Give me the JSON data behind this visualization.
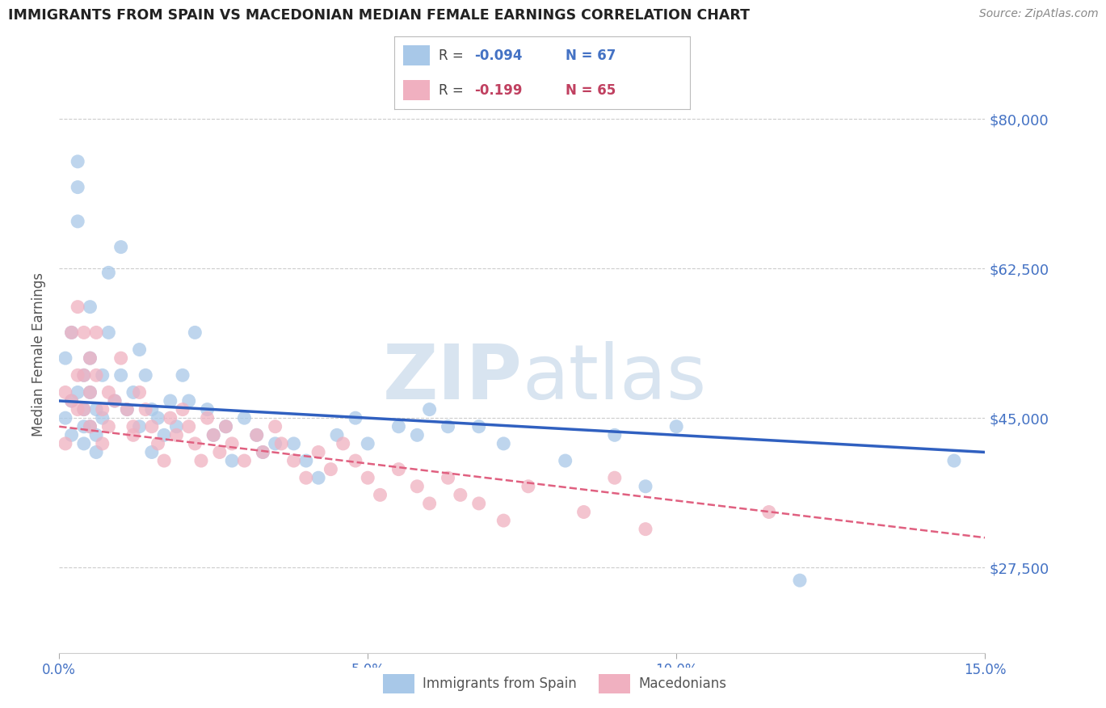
{
  "title": "IMMIGRANTS FROM SPAIN VS MACEDONIAN MEDIAN FEMALE EARNINGS CORRELATION CHART",
  "source": "Source: ZipAtlas.com",
  "ylabel": "Median Female Earnings",
  "xlim": [
    0.0,
    0.15
  ],
  "ylim": [
    17500,
    87500
  ],
  "yticks": [
    27500,
    45000,
    62500,
    80000
  ],
  "ytick_labels": [
    "$27,500",
    "$45,000",
    "$62,500",
    "$80,000"
  ],
  "xticks": [
    0.0,
    0.05,
    0.1,
    0.15
  ],
  "xtick_labels": [
    "0.0%",
    "5.0%",
    "10.0%",
    "15.0%"
  ],
  "series": [
    {
      "name": "Immigrants from Spain",
      "color": "#a8c8e8",
      "R": -0.094,
      "N": 67,
      "trendline_style": "solid",
      "trendline_color": "#3060c0",
      "trendline_x0": 0.0,
      "trendline_y0": 47000,
      "trendline_x1": 0.15,
      "trendline_y1": 41000,
      "x": [
        0.001,
        0.001,
        0.002,
        0.002,
        0.002,
        0.003,
        0.003,
        0.003,
        0.003,
        0.004,
        0.004,
        0.004,
        0.004,
        0.005,
        0.005,
        0.005,
        0.005,
        0.006,
        0.006,
        0.006,
        0.007,
        0.007,
        0.008,
        0.008,
        0.009,
        0.01,
        0.01,
        0.011,
        0.012,
        0.013,
        0.013,
        0.014,
        0.015,
        0.015,
        0.016,
        0.017,
        0.018,
        0.019,
        0.02,
        0.021,
        0.022,
        0.024,
        0.025,
        0.027,
        0.028,
        0.03,
        0.032,
        0.033,
        0.035,
        0.038,
        0.04,
        0.042,
        0.045,
        0.048,
        0.05,
        0.055,
        0.058,
        0.06,
        0.063,
        0.068,
        0.072,
        0.082,
        0.09,
        0.095,
        0.1,
        0.12,
        0.145
      ],
      "y": [
        45000,
        52000,
        55000,
        47000,
        43000,
        75000,
        72000,
        68000,
        48000,
        50000,
        46000,
        44000,
        42000,
        58000,
        52000,
        48000,
        44000,
        46000,
        43000,
        41000,
        50000,
        45000,
        62000,
        55000,
        47000,
        65000,
        50000,
        46000,
        48000,
        53000,
        44000,
        50000,
        46000,
        41000,
        45000,
        43000,
        47000,
        44000,
        50000,
        47000,
        55000,
        46000,
        43000,
        44000,
        40000,
        45000,
        43000,
        41000,
        42000,
        42000,
        40000,
        38000,
        43000,
        45000,
        42000,
        44000,
        43000,
        46000,
        44000,
        44000,
        42000,
        40000,
        43000,
        37000,
        44000,
        26000,
        40000
      ]
    },
    {
      "name": "Macedonians",
      "color": "#f0b0c0",
      "R": -0.199,
      "N": 65,
      "trendline_style": "dashed",
      "trendline_color": "#e06080",
      "trendline_x0": 0.0,
      "trendline_y0": 44000,
      "trendline_x1": 0.15,
      "trendline_y1": 31000,
      "x": [
        0.001,
        0.001,
        0.002,
        0.002,
        0.003,
        0.003,
        0.003,
        0.004,
        0.004,
        0.004,
        0.005,
        0.005,
        0.005,
        0.006,
        0.006,
        0.007,
        0.007,
        0.008,
        0.008,
        0.009,
        0.01,
        0.011,
        0.012,
        0.012,
        0.013,
        0.014,
        0.015,
        0.016,
        0.017,
        0.018,
        0.019,
        0.02,
        0.021,
        0.022,
        0.023,
        0.024,
        0.025,
        0.026,
        0.027,
        0.028,
        0.03,
        0.032,
        0.033,
        0.035,
        0.036,
        0.038,
        0.04,
        0.042,
        0.044,
        0.046,
        0.048,
        0.05,
        0.052,
        0.055,
        0.058,
        0.06,
        0.063,
        0.065,
        0.068,
        0.072,
        0.076,
        0.085,
        0.09,
        0.095,
        0.115
      ],
      "y": [
        48000,
        42000,
        55000,
        47000,
        58000,
        50000,
        46000,
        55000,
        50000,
        46000,
        52000,
        48000,
        44000,
        55000,
        50000,
        46000,
        42000,
        48000,
        44000,
        47000,
        52000,
        46000,
        44000,
        43000,
        48000,
        46000,
        44000,
        42000,
        40000,
        45000,
        43000,
        46000,
        44000,
        42000,
        40000,
        45000,
        43000,
        41000,
        44000,
        42000,
        40000,
        43000,
        41000,
        44000,
        42000,
        40000,
        38000,
        41000,
        39000,
        42000,
        40000,
        38000,
        36000,
        39000,
        37000,
        35000,
        38000,
        36000,
        35000,
        33000,
        37000,
        34000,
        38000,
        32000,
        34000
      ]
    }
  ],
  "background_color": "#ffffff",
  "grid_color": "#cccccc",
  "title_color": "#222222",
  "axis_label_color": "#555555",
  "ytick_label_color": "#4472c4",
  "xtick_label_color": "#4472c4",
  "source_color": "#888888",
  "watermark_zip": "ZIP",
  "watermark_atlas": "atlas",
  "watermark_color": "#d8e4f0",
  "legend_color_blue": "#4472c4",
  "legend_color_pink": "#c04060"
}
